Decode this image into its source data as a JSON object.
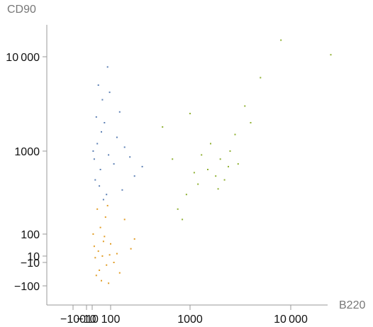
{
  "chart_data": {
    "type": "scatter",
    "title": "",
    "xlabel": "B220",
    "ylabel": "CD90",
    "x_scale": "biexponential",
    "y_scale": "biexponential",
    "xlim": [
      -150,
      25000
    ],
    "ylim": [
      -200,
      20000
    ],
    "grid": false,
    "legend": "none",
    "x_ticks": [
      {
        "value": -100,
        "label": "−100"
      },
      {
        "value": -10,
        "label": "−10"
      },
      {
        "value": 10,
        "label": "10"
      },
      {
        "value": 100,
        "label": "100"
      },
      {
        "value": 1000,
        "label": "1000"
      },
      {
        "value": 10000,
        "label": "10 000"
      }
    ],
    "y_ticks": [
      {
        "value": -100,
        "label": "−100"
      },
      {
        "value": -10,
        "label": "−10"
      },
      {
        "value": 10,
        "label": "10"
      },
      {
        "value": 100,
        "label": "100"
      },
      {
        "value": 1000,
        "label": "1000"
      },
      {
        "value": 10000,
        "label": "10 000"
      }
    ],
    "series": [
      {
        "color": "#5e81b5",
        "points": [
          [
            20,
            800
          ],
          [
            35,
            1200
          ],
          [
            50,
            600
          ],
          [
            70,
            2000
          ],
          [
            90,
            900
          ],
          [
            60,
            3500
          ],
          [
            25,
            450
          ],
          [
            110,
            700
          ],
          [
            150,
            1100
          ],
          [
            40,
            5000
          ],
          [
            80,
            300
          ],
          [
            130,
            2600
          ],
          [
            200,
            500
          ],
          [
            55,
            1600
          ],
          [
            95,
            4200
          ],
          [
            30,
            2300
          ],
          [
            175,
            850
          ],
          [
            45,
            380
          ],
          [
            120,
            1400
          ],
          [
            65,
            260
          ],
          [
            250,
            650
          ],
          [
            85,
            7800
          ],
          [
            15,
            1000
          ],
          [
            140,
            340
          ]
        ]
      },
      {
        "color": "#e19c24",
        "points": [
          [
            20,
            50
          ],
          [
            40,
            30
          ],
          [
            60,
            10
          ],
          [
            80,
            -20
          ],
          [
            100,
            60
          ],
          [
            30,
            -60
          ],
          [
            50,
            120
          ],
          [
            70,
            90
          ],
          [
            90,
            -90
          ],
          [
            120,
            20
          ],
          [
            150,
            150
          ],
          [
            25,
            5
          ],
          [
            45,
            -40
          ],
          [
            65,
            70
          ],
          [
            110,
            -10
          ],
          [
            35,
            200
          ],
          [
            180,
            40
          ],
          [
            55,
            -80
          ],
          [
            75,
            160
          ],
          [
            95,
            15
          ],
          [
            130,
            -50
          ],
          [
            200,
            80
          ],
          [
            15,
            100
          ],
          [
            85,
            220
          ]
        ]
      },
      {
        "color": "#8fb032",
        "points": [
          [
            1500,
            600
          ],
          [
            2000,
            800
          ],
          [
            1200,
            400
          ],
          [
            2500,
            1000
          ],
          [
            1800,
            500
          ],
          [
            3000,
            700
          ],
          [
            900,
            300
          ],
          [
            1600,
            1200
          ],
          [
            2200,
            450
          ],
          [
            700,
            200
          ],
          [
            4000,
            2000
          ],
          [
            1000,
            2500
          ],
          [
            2800,
            1500
          ],
          [
            600,
            800
          ],
          [
            1300,
            900
          ],
          [
            3500,
            3000
          ],
          [
            800,
            150
          ],
          [
            5000,
            6000
          ],
          [
            1900,
            350
          ],
          [
            2400,
            650
          ],
          [
            1100,
            550
          ],
          [
            8000,
            15000
          ],
          [
            25000,
            10500
          ],
          [
            450,
            1800
          ]
        ]
      }
    ]
  }
}
